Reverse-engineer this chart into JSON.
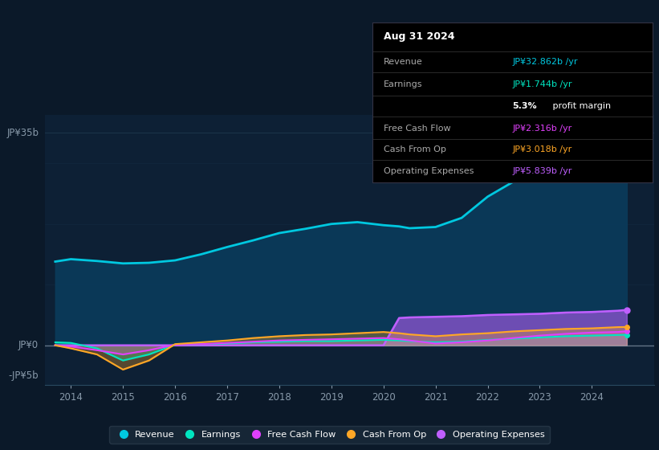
{
  "bg_color": "#0b1929",
  "plot_bg_color": "#0d2035",
  "grid_color": "#1e3a50",
  "title_date": "Aug 31 2024",
  "tooltip": {
    "Revenue": {
      "value": "JP¥32.862b /yr",
      "color": "#00c8e0"
    },
    "Earnings": {
      "value": "JP¥1.744b /yr",
      "color": "#00e5c0"
    },
    "profit_margin_bold": "5.3%",
    "profit_margin_rest": " profit margin",
    "Free Cash Flow": {
      "value": "JP¥2.316b /yr",
      "color": "#e040fb"
    },
    "Cash From Op": {
      "value": "JP¥3.018b /yr",
      "color": "#ffa726"
    },
    "Operating Expenses": {
      "value": "JP¥5.839b /yr",
      "color": "#bf5fff"
    }
  },
  "ylabel_top": "JP¥35b",
  "ylabel_zero": "JP¥0",
  "ylabel_neg": "-JP¥5b",
  "years": [
    2013.7,
    2014.0,
    2014.5,
    2015.0,
    2015.5,
    2016.0,
    2016.5,
    2017.0,
    2017.5,
    2018.0,
    2018.5,
    2019.0,
    2019.5,
    2020.0,
    2020.3,
    2020.5,
    2021.0,
    2021.5,
    2022.0,
    2022.5,
    2023.0,
    2023.5,
    2024.0,
    2024.5,
    2024.67
  ],
  "revenue": [
    13.8,
    14.2,
    13.9,
    13.5,
    13.6,
    14.0,
    15.0,
    16.2,
    17.3,
    18.5,
    19.2,
    20.0,
    20.3,
    19.8,
    19.6,
    19.3,
    19.5,
    21.0,
    24.5,
    27.0,
    29.0,
    30.5,
    31.5,
    32.5,
    32.862
  ],
  "earnings": [
    0.5,
    0.4,
    -0.5,
    -2.5,
    -1.5,
    0.1,
    0.2,
    0.3,
    0.5,
    0.6,
    0.7,
    0.7,
    0.8,
    0.9,
    0.8,
    0.7,
    0.5,
    0.6,
    0.9,
    1.1,
    1.3,
    1.5,
    1.6,
    1.7,
    1.744
  ],
  "free_cash_flow": [
    0.0,
    -0.2,
    -0.8,
    -1.5,
    -0.8,
    0.1,
    0.2,
    0.4,
    0.6,
    0.8,
    0.9,
    1.0,
    1.1,
    1.2,
    1.0,
    0.8,
    0.3,
    0.5,
    0.8,
    1.2,
    1.6,
    1.9,
    2.1,
    2.2,
    2.316
  ],
  "cash_from_op": [
    0.0,
    -0.5,
    -1.5,
    -4.0,
    -2.5,
    0.2,
    0.5,
    0.8,
    1.2,
    1.5,
    1.7,
    1.8,
    2.0,
    2.2,
    2.0,
    1.8,
    1.5,
    1.8,
    2.0,
    2.3,
    2.5,
    2.7,
    2.8,
    3.0,
    3.018
  ],
  "operating_expenses": [
    0.0,
    0.0,
    0.0,
    0.0,
    0.0,
    0.0,
    0.0,
    0.0,
    0.0,
    0.0,
    0.0,
    0.0,
    0.0,
    0.0,
    4.5,
    4.6,
    4.7,
    4.8,
    5.0,
    5.1,
    5.2,
    5.4,
    5.5,
    5.7,
    5.839
  ],
  "revenue_color": "#00c8e0",
  "revenue_fill_color": "#0d3a5c",
  "earnings_color": "#00e5c0",
  "fcf_color": "#e040fb",
  "cashop_color": "#ffa726",
  "opex_color": "#bf5fff",
  "ylim": [
    -6.5,
    38
  ],
  "xlim": [
    2013.5,
    2025.2
  ],
  "xticks": [
    2014,
    2015,
    2016,
    2017,
    2018,
    2019,
    2020,
    2021,
    2022,
    2023,
    2024
  ]
}
